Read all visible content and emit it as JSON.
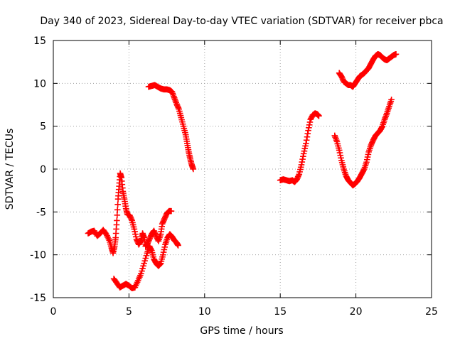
{
  "colors": {
    "series": "#ff0000",
    "background": "#ffffff",
    "axis": "#000000",
    "grid": "#a0a0a0"
  },
  "chart_data": {
    "type": "scatter",
    "title": "Day 340 of 2023, Sidereal Day-to-day VTEC variation (SDTVAR) for receiver pbca",
    "xlabel": "GPS time / hours",
    "ylabel": "SDTVAR / TECUs",
    "xlim": [
      0,
      25
    ],
    "ylim": [
      -15,
      15
    ],
    "xticks": [
      0,
      5,
      10,
      15,
      20,
      25
    ],
    "yticks": [
      15,
      10,
      5,
      0,
      -5,
      -10,
      -15
    ],
    "grid": true,
    "marker": "plus",
    "series": [
      {
        "name": "SDTVAR",
        "segments": [
          [
            [
              2.3,
              -7.5
            ],
            [
              2.5,
              -7.3
            ],
            [
              2.7,
              -7.2
            ],
            [
              2.9,
              -7.8
            ],
            [
              3.1,
              -7.5
            ],
            [
              3.3,
              -7.1
            ],
            [
              3.5,
              -7.6
            ],
            [
              3.7,
              -8.3
            ],
            [
              3.85,
              -9.2
            ],
            [
              3.95,
              -9.8
            ],
            [
              4.05,
              -9.0
            ],
            [
              4.12,
              -8.0
            ],
            [
              4.2,
              -6.0
            ],
            [
              4.28,
              -3.5
            ],
            [
              4.35,
              -2.0
            ],
            [
              4.42,
              -0.5
            ],
            [
              4.5,
              -1.0
            ],
            [
              4.6,
              -2.6
            ],
            [
              4.7,
              -3.5
            ],
            [
              4.8,
              -4.6
            ],
            [
              4.9,
              -5.3
            ],
            [
              5.05,
              -5.4
            ],
            [
              5.2,
              -6.0
            ],
            [
              5.35,
              -7.0
            ],
            [
              5.5,
              -8.2
            ],
            [
              5.65,
              -8.8
            ],
            [
              5.8,
              -8.3
            ],
            [
              5.9,
              -7.5
            ],
            [
              6.0,
              -8.0
            ],
            [
              6.1,
              -9.0
            ],
            [
              6.2,
              -8.8
            ],
            [
              6.35,
              -8.2
            ],
            [
              6.5,
              -7.6
            ],
            [
              6.65,
              -7.2
            ],
            [
              6.8,
              -7.8
            ],
            [
              6.95,
              -8.4
            ],
            [
              7.1,
              -7.6
            ],
            [
              7.2,
              -6.4
            ],
            [
              7.35,
              -5.8
            ],
            [
              7.5,
              -5.2
            ],
            [
              7.65,
              -4.9
            ],
            [
              7.8,
              -4.9
            ]
          ],
          [
            [
              4.0,
              -12.8
            ],
            [
              4.2,
              -13.3
            ],
            [
              4.4,
              -13.8
            ],
            [
              4.6,
              -13.6
            ],
            [
              4.8,
              -13.4
            ],
            [
              5.0,
              -13.6
            ],
            [
              5.2,
              -13.9
            ],
            [
              5.4,
              -13.8
            ],
            [
              5.6,
              -13.0
            ],
            [
              5.8,
              -12.2
            ],
            [
              6.0,
              -11.0
            ],
            [
              6.2,
              -9.8
            ],
            [
              6.35,
              -9.0
            ],
            [
              6.5,
              -9.5
            ],
            [
              6.65,
              -10.5
            ],
            [
              6.8,
              -11.0
            ],
            [
              6.95,
              -11.3
            ],
            [
              7.1,
              -11.0
            ],
            [
              7.25,
              -10.0
            ],
            [
              7.4,
              -8.8
            ],
            [
              7.55,
              -8.0
            ],
            [
              7.7,
              -7.6
            ],
            [
              7.85,
              -7.9
            ],
            [
              8.0,
              -8.3
            ],
            [
              8.15,
              -8.6
            ],
            [
              8.25,
              -8.9
            ]
          ],
          [
            [
              6.3,
              9.6
            ],
            [
              6.5,
              9.7
            ],
            [
              6.7,
              9.8
            ],
            [
              6.9,
              9.6
            ],
            [
              7.1,
              9.4
            ],
            [
              7.3,
              9.3
            ],
            [
              7.5,
              9.3
            ],
            [
              7.7,
              9.2
            ],
            [
              7.85,
              9.0
            ],
            [
              8.0,
              8.3
            ],
            [
              8.15,
              7.6
            ],
            [
              8.3,
              7.0
            ],
            [
              8.45,
              6.0
            ],
            [
              8.6,
              5.0
            ],
            [
              8.75,
              4.0
            ],
            [
              8.85,
              3.0
            ],
            [
              8.95,
              2.0
            ],
            [
              9.05,
              1.2
            ],
            [
              9.15,
              0.5
            ],
            [
              9.25,
              0.0
            ]
          ],
          [
            [
              15.0,
              -1.3
            ],
            [
              15.2,
              -1.2
            ],
            [
              15.4,
              -1.3
            ],
            [
              15.6,
              -1.4
            ],
            [
              15.8,
              -1.3
            ],
            [
              15.95,
              -1.5
            ],
            [
              16.1,
              -1.2
            ],
            [
              16.25,
              -0.6
            ],
            [
              16.4,
              0.5
            ],
            [
              16.55,
              1.8
            ],
            [
              16.7,
              3.0
            ],
            [
              16.85,
              4.5
            ],
            [
              17.0,
              5.8
            ],
            [
              17.15,
              6.3
            ],
            [
              17.3,
              6.5
            ],
            [
              17.45,
              6.4
            ],
            [
              17.55,
              6.2
            ]
          ],
          [
            [
              18.6,
              3.9
            ],
            [
              18.75,
              3.2
            ],
            [
              18.9,
              2.2
            ],
            [
              19.05,
              1.0
            ],
            [
              19.2,
              0.0
            ],
            [
              19.35,
              -0.8
            ],
            [
              19.5,
              -1.3
            ],
            [
              19.65,
              -1.6
            ],
            [
              19.8,
              -1.9
            ],
            [
              19.95,
              -1.7
            ],
            [
              20.1,
              -1.4
            ],
            [
              20.25,
              -1.0
            ],
            [
              20.4,
              -0.5
            ],
            [
              20.55,
              0.0
            ],
            [
              20.7,
              0.8
            ],
            [
              20.85,
              2.0
            ],
            [
              21.0,
              2.8
            ],
            [
              21.15,
              3.4
            ],
            [
              21.3,
              3.9
            ],
            [
              21.45,
              4.2
            ],
            [
              21.6,
              4.5
            ],
            [
              21.75,
              5.0
            ],
            [
              21.9,
              5.8
            ],
            [
              22.05,
              6.5
            ],
            [
              22.2,
              7.3
            ],
            [
              22.35,
              8.1
            ]
          ],
          [
            [
              18.9,
              11.2
            ],
            [
              19.05,
              10.8
            ],
            [
              19.2,
              10.2
            ],
            [
              19.35,
              10.0
            ],
            [
              19.5,
              9.8
            ],
            [
              19.65,
              9.8
            ],
            [
              19.8,
              9.6
            ],
            [
              19.95,
              10.0
            ],
            [
              20.1,
              10.4
            ],
            [
              20.25,
              10.8
            ],
            [
              20.4,
              11.0
            ],
            [
              20.55,
              11.2
            ],
            [
              20.7,
              11.5
            ],
            [
              20.85,
              11.8
            ],
            [
              21.0,
              12.3
            ],
            [
              21.15,
              12.8
            ],
            [
              21.3,
              13.2
            ],
            [
              21.45,
              13.4
            ],
            [
              21.6,
              13.3
            ],
            [
              21.75,
              13.0
            ],
            [
              21.9,
              12.8
            ],
            [
              22.05,
              12.7
            ],
            [
              22.2,
              12.9
            ],
            [
              22.35,
              13.1
            ],
            [
              22.5,
              13.3
            ],
            [
              22.65,
              13.4
            ]
          ]
        ]
      }
    ]
  }
}
